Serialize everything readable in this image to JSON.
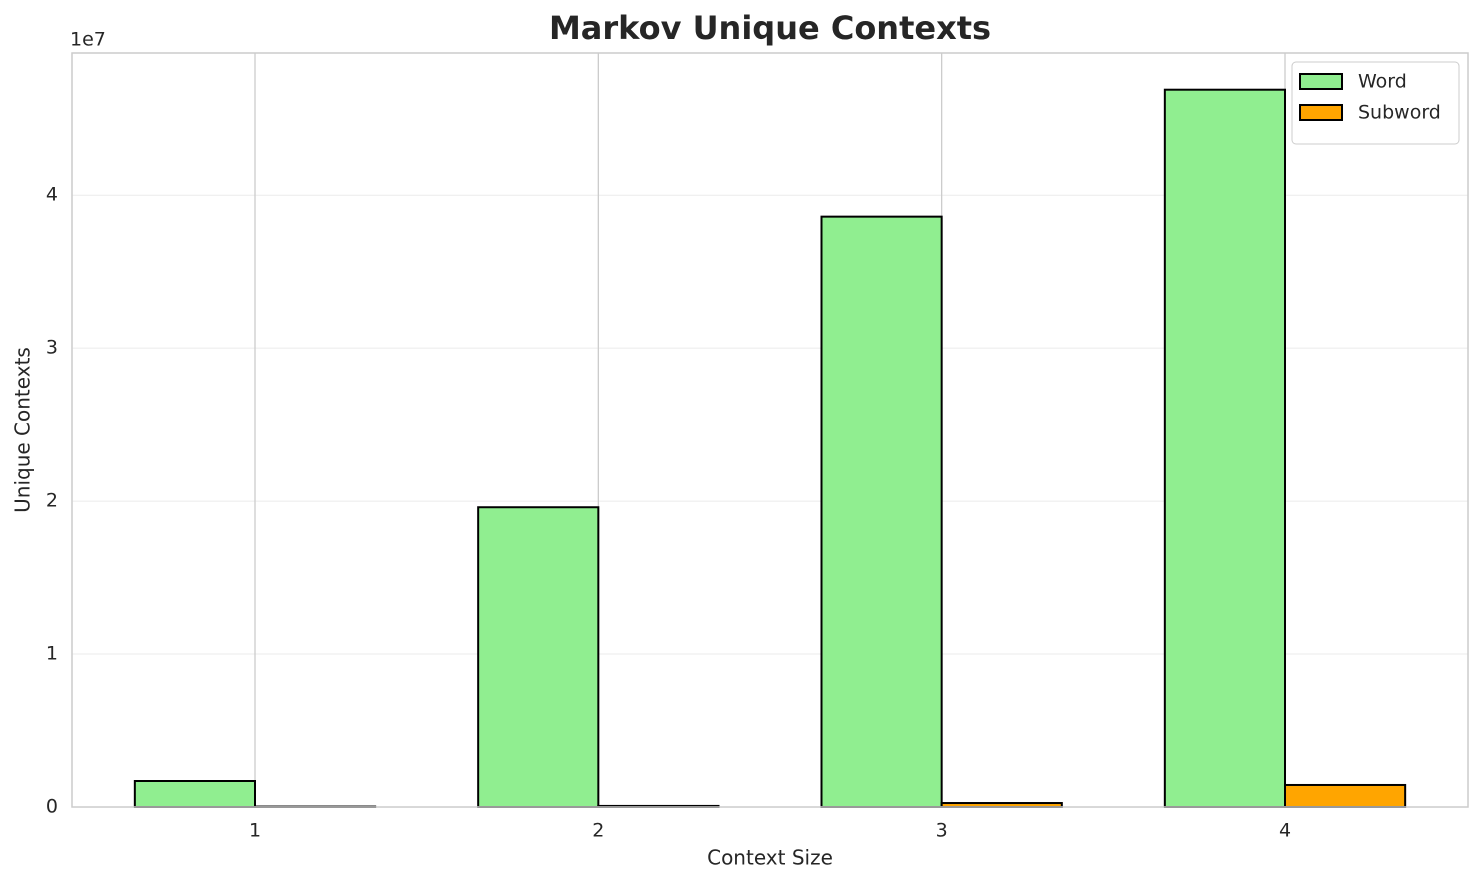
{
  "chart_data": {
    "type": "bar",
    "title": "Markov Unique Contexts",
    "x_label": "Context Size",
    "y_label": "Unique Contexts",
    "y_scale_label": "1e7",
    "categories": [
      "1",
      "2",
      "3",
      "4"
    ],
    "series": [
      {
        "name": "Word",
        "color": "#90ee90",
        "values": [
          0.17,
          1.96,
          3.86,
          4.69
        ]
      },
      {
        "name": "Subword",
        "color": "#ffa500",
        "values": [
          0.003,
          0.007,
          0.026,
          0.144
        ]
      }
    ],
    "ylim": [
      0,
      4.93
    ],
    "yticks": [
      0,
      1,
      2,
      3,
      4
    ],
    "grid": true,
    "legend": "upper right"
  }
}
